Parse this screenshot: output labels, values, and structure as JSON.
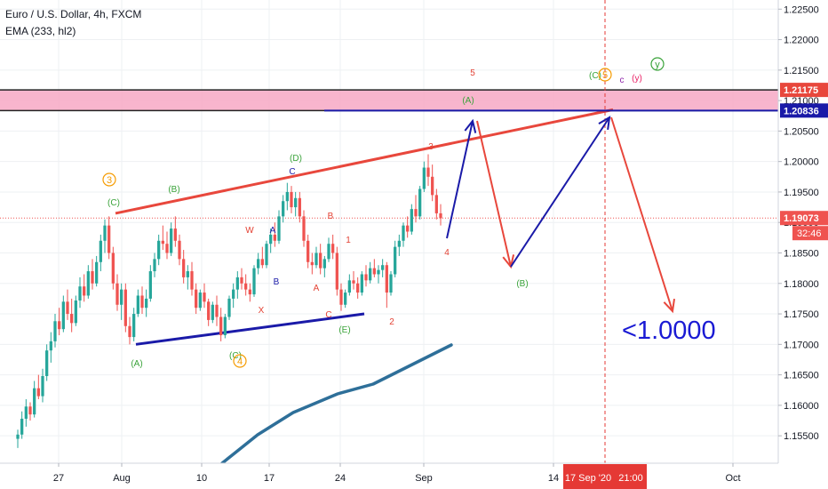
{
  "header": {
    "symbol": "Euro / U.S. Dollar, 4h, FXCM",
    "indicator": "EMA (233, hl2)"
  },
  "colors": {
    "up": "#26a69a",
    "down": "#ef5350",
    "ema": "#2e6f99",
    "zone": "#f7a8c4",
    "wave_blue": "#1a1aa8",
    "trend_red": "#e8473c",
    "label_green": "#3aa33a",
    "label_red": "#e34234",
    "label_orange": "#f59b00"
  },
  "chart_data": {
    "type": "candlestick",
    "symbol": "EURUSD",
    "timeframe": "4h",
    "ylim": [
      1.1505,
      1.2265
    ],
    "y_ticks": [
      "1.22500",
      "1.22000",
      "1.21500",
      "1.21000",
      "1.20500",
      "1.20000",
      "1.19500",
      "1.19000",
      "1.18500",
      "1.18000",
      "1.17500",
      "1.17000",
      "1.16500",
      "1.16000",
      "1.15500"
    ],
    "x_ticks": [
      "27",
      "Aug",
      "10",
      "17",
      "24",
      "Sep",
      "14",
      "Oct"
    ],
    "price_labels": [
      {
        "value": "1.21175",
        "bg": "#e8473c"
      },
      {
        "value": "1.20836",
        "bg": "#1a1aa8"
      },
      {
        "value": "1.19073",
        "bg": "#ef5350"
      }
    ],
    "countdown": "32:46",
    "time_marker": {
      "date": "17 Sep '20",
      "time": "21:00"
    },
    "zone": [
      1.20836,
      1.21175
    ],
    "candles_ohlc": [
      [
        1.1545,
        1.156,
        1.153,
        1.1552
      ],
      [
        1.1552,
        1.159,
        1.1545,
        1.1578
      ],
      [
        1.1578,
        1.161,
        1.1565,
        1.1598
      ],
      [
        1.1598,
        1.1605,
        1.1575,
        1.1585
      ],
      [
        1.1585,
        1.164,
        1.158,
        1.1628
      ],
      [
        1.1628,
        1.165,
        1.161,
        1.1615
      ],
      [
        1.1615,
        1.166,
        1.1605,
        1.1648
      ],
      [
        1.1648,
        1.17,
        1.164,
        1.169
      ],
      [
        1.169,
        1.172,
        1.167,
        1.1705
      ],
      [
        1.1705,
        1.175,
        1.1695,
        1.1738
      ],
      [
        1.1738,
        1.176,
        1.1715,
        1.1725
      ],
      [
        1.1725,
        1.178,
        1.172,
        1.177
      ],
      [
        1.177,
        1.179,
        1.174,
        1.175
      ],
      [
        1.175,
        1.1775,
        1.172,
        1.1735
      ],
      [
        1.1735,
        1.178,
        1.173,
        1.1772
      ],
      [
        1.1772,
        1.181,
        1.176,
        1.1795
      ],
      [
        1.1795,
        1.1815,
        1.177,
        1.178
      ],
      [
        1.178,
        1.183,
        1.1775,
        1.182
      ],
      [
        1.182,
        1.184,
        1.179,
        1.18
      ],
      [
        1.18,
        1.1845,
        1.1795,
        1.1835
      ],
      [
        1.1835,
        1.188,
        1.182,
        1.187
      ],
      [
        1.187,
        1.1905,
        1.185,
        1.1895
      ],
      [
        1.1895,
        1.191,
        1.184,
        1.185
      ],
      [
        1.185,
        1.186,
        1.179,
        1.18
      ],
      [
        1.18,
        1.1815,
        1.1755,
        1.1765
      ],
      [
        1.1765,
        1.18,
        1.174,
        1.179
      ],
      [
        1.179,
        1.18,
        1.172,
        1.173
      ],
      [
        1.173,
        1.1745,
        1.17,
        1.1712
      ],
      [
        1.1712,
        1.176,
        1.1705,
        1.175
      ],
      [
        1.175,
        1.179,
        1.1745,
        1.178
      ],
      [
        1.178,
        1.1795,
        1.175,
        1.176
      ],
      [
        1.176,
        1.179,
        1.1745,
        1.1775
      ],
      [
        1.1775,
        1.183,
        1.177,
        1.182
      ],
      [
        1.182,
        1.185,
        1.181,
        1.184
      ],
      [
        1.184,
        1.188,
        1.183,
        1.187
      ],
      [
        1.187,
        1.1895,
        1.1855,
        1.1865
      ],
      [
        1.1865,
        1.1885,
        1.184,
        1.185
      ],
      [
        1.185,
        1.19,
        1.1845,
        1.189
      ],
      [
        1.189,
        1.191,
        1.186,
        1.187
      ],
      [
        1.187,
        1.188,
        1.183,
        1.184
      ],
      [
        1.184,
        1.1855,
        1.18,
        1.181
      ],
      [
        1.181,
        1.183,
        1.179,
        1.182
      ],
      [
        1.182,
        1.1835,
        1.178,
        1.179
      ],
      [
        1.179,
        1.18,
        1.175,
        1.176
      ],
      [
        1.176,
        1.179,
        1.1755,
        1.1785
      ],
      [
        1.1785,
        1.18,
        1.176,
        1.177
      ],
      [
        1.177,
        1.1775,
        1.173,
        1.174
      ],
      [
        1.174,
        1.177,
        1.1735,
        1.1765
      ],
      [
        1.1765,
        1.178,
        1.173,
        1.1745
      ],
      [
        1.1745,
        1.176,
        1.1705,
        1.1715
      ],
      [
        1.1715,
        1.175,
        1.171,
        1.1745
      ],
      [
        1.1745,
        1.178,
        1.174,
        1.1775
      ],
      [
        1.1775,
        1.18,
        1.176,
        1.179
      ],
      [
        1.179,
        1.182,
        1.1775,
        1.181
      ],
      [
        1.181,
        1.1825,
        1.179,
        1.18
      ],
      [
        1.18,
        1.1815,
        1.178,
        1.179
      ],
      [
        1.179,
        1.18,
        1.177,
        1.1782
      ],
      [
        1.1782,
        1.183,
        1.1778,
        1.1825
      ],
      [
        1.1825,
        1.185,
        1.1815,
        1.184
      ],
      [
        1.184,
        1.186,
        1.1825,
        1.183
      ],
      [
        1.183,
        1.187,
        1.1825,
        1.1865
      ],
      [
        1.1865,
        1.189,
        1.185,
        1.188
      ],
      [
        1.188,
        1.19,
        1.186,
        1.187
      ],
      [
        1.187,
        1.192,
        1.1865,
        1.191
      ],
      [
        1.191,
        1.1945,
        1.19,
        1.1935
      ],
      [
        1.1935,
        1.1965,
        1.192,
        1.195
      ],
      [
        1.195,
        1.196,
        1.1915,
        1.1925
      ],
      [
        1.1925,
        1.195,
        1.191,
        1.194
      ],
      [
        1.194,
        1.195,
        1.19,
        1.191
      ],
      [
        1.191,
        1.192,
        1.186,
        1.187
      ],
      [
        1.187,
        1.188,
        1.1825,
        1.1835
      ],
      [
        1.1835,
        1.185,
        1.1815,
        1.183
      ],
      [
        1.183,
        1.186,
        1.1825,
        1.185
      ],
      [
        1.185,
        1.1865,
        1.1815,
        1.1825
      ],
      [
        1.1825,
        1.1845,
        1.181,
        1.184
      ],
      [
        1.184,
        1.1875,
        1.1835,
        1.1865
      ],
      [
        1.1865,
        1.188,
        1.184,
        1.185
      ],
      [
        1.185,
        1.186,
        1.178,
        1.179
      ],
      [
        1.179,
        1.18,
        1.1755,
        1.1765
      ],
      [
        1.1765,
        1.179,
        1.176,
        1.1785
      ],
      [
        1.1785,
        1.1815,
        1.178,
        1.1805
      ],
      [
        1.1805,
        1.182,
        1.179,
        1.18
      ],
      [
        1.18,
        1.181,
        1.1775,
        1.1785
      ],
      [
        1.1785,
        1.182,
        1.178,
        1.1815
      ],
      [
        1.1815,
        1.183,
        1.1795,
        1.1805
      ],
      [
        1.1805,
        1.1835,
        1.18,
        1.1825
      ],
      [
        1.1825,
        1.184,
        1.181,
        1.1815
      ],
      [
        1.1815,
        1.183,
        1.18,
        1.1822
      ],
      [
        1.1822,
        1.184,
        1.181,
        1.183
      ],
      [
        1.183,
        1.1835,
        1.176,
        1.1785
      ],
      [
        1.1785,
        1.182,
        1.178,
        1.1815
      ],
      [
        1.1815,
        1.187,
        1.181,
        1.186
      ],
      [
        1.186,
        1.188,
        1.1845,
        1.187
      ],
      [
        1.187,
        1.19,
        1.186,
        1.1895
      ],
      [
        1.1895,
        1.191,
        1.1875,
        1.1885
      ],
      [
        1.1885,
        1.193,
        1.188,
        1.1922
      ],
      [
        1.1922,
        1.1945,
        1.19,
        1.191
      ],
      [
        1.191,
        1.196,
        1.1905,
        1.1955
      ],
      [
        1.1955,
        1.2,
        1.195,
        1.199
      ],
      [
        1.199,
        1.2012,
        1.196,
        1.1975
      ],
      [
        1.1975,
        1.1995,
        1.1935,
        1.1945
      ],
      [
        1.1945,
        1.1955,
        1.1905,
        1.1915
      ],
      [
        1.1915,
        1.193,
        1.1895,
        1.1907
      ]
    ],
    "ema_233": [
      [
        1.151,
        1.1535
      ],
      [
        1.1565,
        1.16
      ],
      [
        1.163,
        1.164
      ],
      [
        1.166,
        1.169
      ],
      [
        1.171,
        1.173
      ],
      [
        1.1745,
        1.1775
      ],
      [
        1.179,
        1.1812
      ]
    ],
    "drawn_lines": {
      "upper_trendline": [
        1.1915,
        1.2085
      ],
      "lower_trendline": [
        1.17,
        1.175
      ],
      "blue_level": 1.20836
    },
    "forecast_path_blue": [
      1.188,
      1.207,
      1.1842,
      1.207
    ],
    "forecast_path_red_segments": [
      [
        1.207,
        1.1842
      ],
      [
        1.207,
        1.178
      ]
    ],
    "wave_labels": [
      {
        "text": "3",
        "color": "#f59b00",
        "circled": true
      },
      {
        "text": "(C)",
        "color": "#3aa33a"
      },
      {
        "text": "(B)",
        "color": "#3aa33a"
      },
      {
        "text": "(A)",
        "color": "#3aa33a"
      },
      {
        "text": "(C)",
        "color": "#3aa33a"
      },
      {
        "text": "4",
        "color": "#f59b00",
        "circled": true
      },
      {
        "text": "W",
        "color": "#e34234"
      },
      {
        "text": "X",
        "color": "#e34234"
      },
      {
        "text": "A",
        "color": "#1a1aa8"
      },
      {
        "text": "B",
        "color": "#1a1aa8"
      },
      {
        "text": "C",
        "color": "#1a1aa8"
      },
      {
        "text": "(D)",
        "color": "#3aa33a"
      },
      {
        "text": "B",
        "color": "#e34234"
      },
      {
        "text": "A",
        "color": "#e34234"
      },
      {
        "text": "C",
        "color": "#e34234"
      },
      {
        "text": "(E)",
        "color": "#3aa33a"
      },
      {
        "text": "1",
        "color": "#e34234"
      },
      {
        "text": "2",
        "color": "#e34234"
      },
      {
        "text": "3",
        "color": "#e34234"
      },
      {
        "text": "4",
        "color": "#e34234"
      },
      {
        "text": "5",
        "color": "#e34234"
      },
      {
        "text": "(A)",
        "color": "#3aa33a"
      },
      {
        "text": "(B)",
        "color": "#3aa33a"
      },
      {
        "text": "(C)",
        "color": "#3aa33a"
      },
      {
        "text": "5",
        "color": "#f59b00",
        "circled": true
      },
      {
        "text": "c",
        "color": "#8e24aa"
      },
      {
        "text": "(y)",
        "color": "#e91e63"
      },
      {
        "text": "y",
        "color": "#3aa33a",
        "circled": true
      }
    ],
    "target_text": "<1.0000"
  }
}
